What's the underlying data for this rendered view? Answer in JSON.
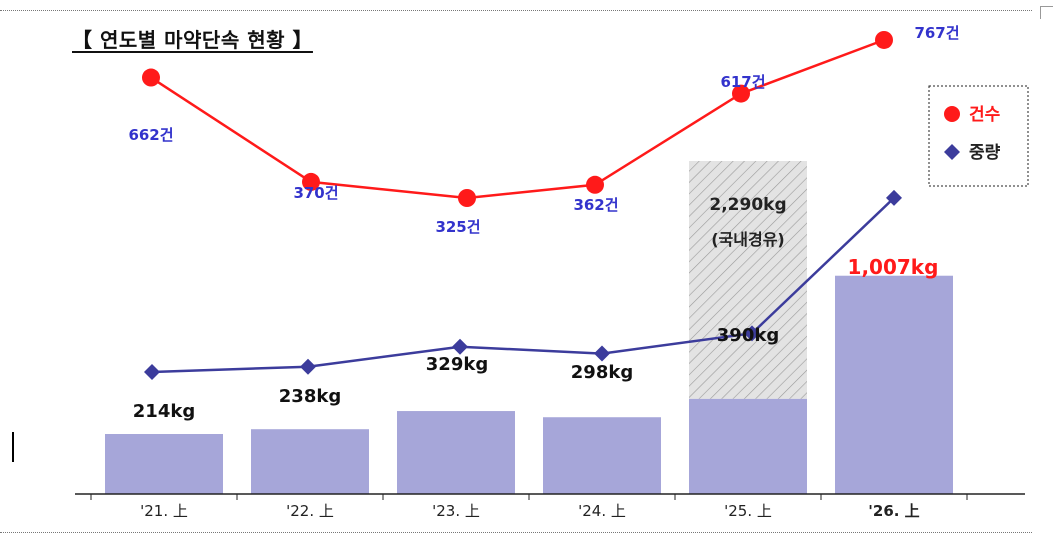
{
  "title": "【 연도별 마약단속 현황 】",
  "chart_data": {
    "type": "bar",
    "title": "【 연도별 마약단속 현황 】",
    "categories": [
      "'21. 上",
      "'22. 上",
      "'23. 上",
      "'24. 上",
      "'25. 上",
      "'26. 上"
    ],
    "series": [
      {
        "name": "중량",
        "unit": "kg",
        "values": [
          214,
          238,
          329,
          298,
          390,
          1007
        ],
        "labels": [
          "214kg",
          "238kg",
          "329kg",
          "298kg",
          "390kg",
          "1,007kg"
        ],
        "color": "#a6a6d9",
        "marker_color": "#3c3c9c"
      },
      {
        "name": "건수",
        "type": "line",
        "values": [
          662,
          370,
          325,
          362,
          617,
          767
        ],
        "labels": [
          "662건",
          "370건",
          "325건",
          "362건",
          "617건",
          "767건"
        ],
        "color": "#ff1a1a",
        "label_color": "#3333cc"
      }
    ],
    "extra_bar": {
      "category": "'25. 上",
      "label_value": "2,290kg",
      "label_note": "(국내경유)",
      "fill": "hatched-gray"
    },
    "highlight": {
      "category": "'26. 上",
      "label": "1,007kg",
      "color": "#ff1a1a"
    },
    "legend": {
      "placement": "top-right",
      "items": [
        {
          "name": "건수",
          "color": "#ff1a1a",
          "marker": "circle"
        },
        {
          "name": "중량",
          "color": "#3c3c9c",
          "marker": "diamond"
        }
      ]
    }
  }
}
